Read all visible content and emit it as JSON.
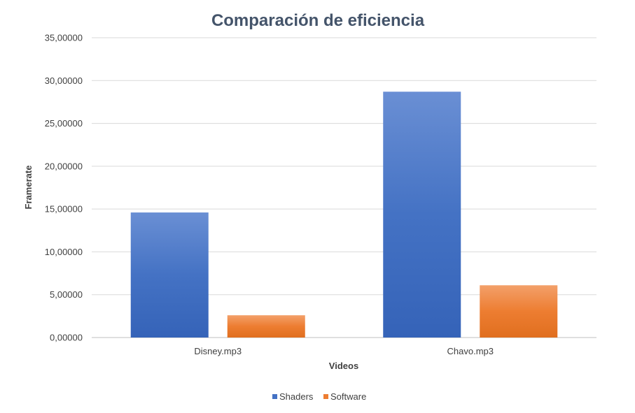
{
  "chart_data": {
    "type": "bar",
    "title": "Comparación de eficiencia",
    "xlabel": "Videos",
    "ylabel": "Framerate",
    "categories": [
      "Disney.mp3",
      "Chavo.mp3"
    ],
    "series": [
      {
        "name": "Shaders",
        "values": [
          14.6,
          28.7
        ],
        "color": "#4472c4"
      },
      {
        "name": "Software",
        "values": [
          2.6,
          6.1
        ],
        "color": "#ed7d31"
      }
    ],
    "ylim": [
      0,
      35
    ],
    "yticks": [
      "0,00000",
      "5,00000",
      "10,00000",
      "15,00000",
      "20,00000",
      "25,00000",
      "30,00000",
      "35,00000"
    ],
    "ytick_values": [
      0,
      5,
      10,
      15,
      20,
      25,
      30,
      35
    ],
    "grid": true,
    "legend_position": "bottom"
  }
}
